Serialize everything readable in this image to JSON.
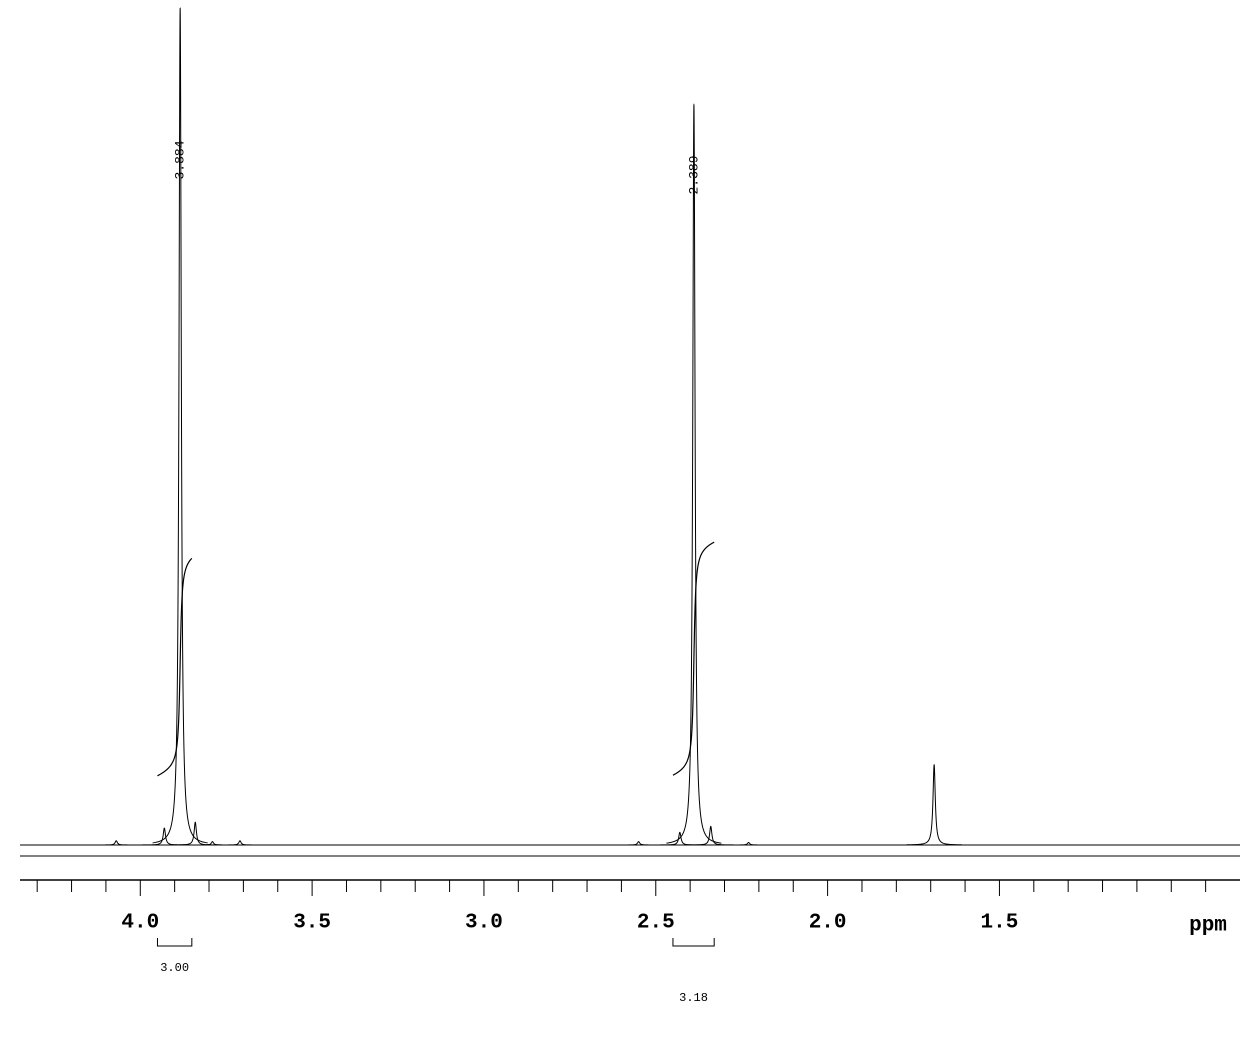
{
  "chart_data": {
    "type": "nmr",
    "x_label": "ppm",
    "xlim": [
      4.35,
      0.8
    ],
    "xticks": [
      {
        "value": 4,
        "label": "4.0"
      },
      3.5,
      {
        "value": 3,
        "label": "3.0"
      },
      2.5,
      {
        "value": 2,
        "label": "2.0"
      },
      1.5
    ],
    "minor_xticks": [
      4.3,
      4.2,
      4.1,
      3.9,
      3.8,
      3.7,
      3.6,
      3.4,
      3.3,
      3.2,
      3.1,
      2.9,
      2.8,
      2.7,
      2.6,
      2.4,
      2.3,
      2.2,
      2.1,
      1.9,
      1.8,
      1.7,
      1.6,
      1.4,
      1.3,
      1.2,
      1.1,
      1.0,
      0.9
    ],
    "ylim": [
      0,
      100
    ],
    "color": "#000000",
    "peaks": [
      {
        "ppm": 3.884,
        "height": 99,
        "label": "3.884"
      },
      {
        "ppm": 2.389,
        "height": 87.6,
        "label": "2.389"
      },
      {
        "ppm": 1.69,
        "height": 9.5
      },
      {
        "ppm": 3.93,
        "height": 2
      },
      {
        "ppm": 3.84,
        "height": 2.7
      },
      {
        "ppm": 4.07,
        "height": 0.5
      },
      {
        "ppm": 3.79,
        "height": 0.4
      },
      {
        "ppm": 3.71,
        "height": 0.5
      },
      {
        "ppm": 2.55,
        "height": 0.4
      },
      {
        "ppm": 2.43,
        "height": 1.5
      },
      {
        "ppm": 2.34,
        "height": 2.2
      },
      {
        "ppm": 2.23,
        "height": 0.3
      }
    ],
    "integrals": [
      {
        "from": 3.95,
        "to": 3.85,
        "value": {
          "value": 3,
          "label": "3.00"
        }
      },
      {
        "from": 2.45,
        "to": 2.33,
        "value": {
          "value": 3.18,
          "label": "3.18"
        }
      }
    ]
  }
}
